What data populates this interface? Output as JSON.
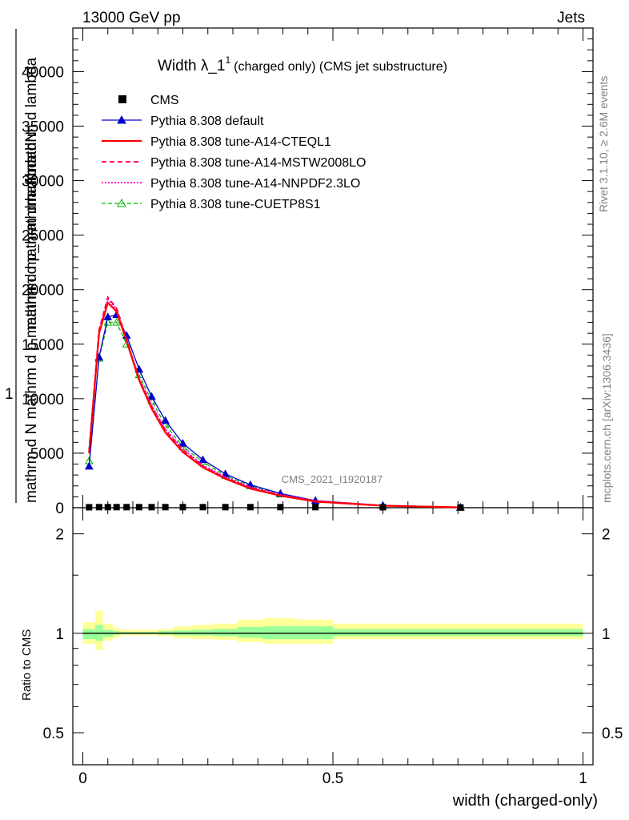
{
  "header": {
    "left": "13000 GeV pp",
    "right": "Jets"
  },
  "side_labels": {
    "rivet": "Rivet 3.1.10, ≥ 2.6M events",
    "mcplots": "mcplots.cern.ch [arXiv:1306.3436]"
  },
  "watermark": "CMS_2021_I1920187",
  "colors": {
    "cms": "#000000",
    "default": "#0000cc",
    "cteql1": "#ff0000",
    "mstw": "#ff0066",
    "nnpdf": "#ff00cc",
    "cuetp8s1": "#00b800",
    "band_outer": "#ffff99",
    "band_inner": "#99ff99"
  },
  "chart_data": [
    {
      "type": "line",
      "title_main": "Width λ_1",
      "title_sup": "1",
      "title_rest": "(charged only) (CMS jet substructure)",
      "ylabel_top": "mathrm dN",
      "ylabel_top2": "mathrm d p_mathrm d mathrm d lambda",
      "ylabel_one": "1",
      "ylabel_bottom": "mathrm d N  mathrm d p mathrm d mathrm d lambda",
      "ylim": [
        0,
        44000
      ],
      "xlim": [
        -0.02,
        1.02
      ],
      "ytick_labels": [
        "0",
        "5000",
        "10000",
        "15000",
        "20000",
        "25000",
        "30000",
        "35000",
        "40000"
      ],
      "ytick_values": [
        0,
        5000,
        10000,
        15000,
        20000,
        25000,
        30000,
        35000,
        40000
      ],
      "x": [
        0.0125,
        0.0325,
        0.05,
        0.0675,
        0.0875,
        0.1125,
        0.1375,
        0.165,
        0.2,
        0.24,
        0.285,
        0.335,
        0.395,
        0.465,
        0.6,
        0.755
      ],
      "series": [
        {
          "name": "CMS",
          "key": "cms",
          "style": "marker",
          "values": [
            40,
            50,
            50,
            50,
            50,
            50,
            50,
            50,
            50,
            50,
            50,
            50,
            50,
            50,
            40,
            20
          ]
        },
        {
          "name": "Pythia 8.308 default",
          "key": "default",
          "style": "solid-triangle",
          "values": [
            3800,
            13800,
            17500,
            17700,
            15800,
            12700,
            10200,
            8000,
            5900,
            4400,
            3100,
            2100,
            1300,
            650,
            200,
            30
          ]
        },
        {
          "name": "Pythia 8.308 tune-A14-CTEQL1",
          "key": "cteql1",
          "style": "solid",
          "values": [
            5000,
            16000,
            18800,
            18000,
            15300,
            11700,
            9100,
            6900,
            5100,
            3700,
            2650,
            1750,
            1100,
            560,
            180,
            30
          ]
        },
        {
          "name": "Pythia 8.308 tune-A14-MSTW2008LO",
          "key": "mstw",
          "style": "dashed",
          "values": [
            5200,
            16300,
            19300,
            18300,
            15400,
            11800,
            9300,
            7100,
            5300,
            3800,
            2750,
            1850,
            1150,
            600,
            190,
            30
          ]
        },
        {
          "name": "Pythia 8.308 tune-A14-NNPDF2.3LO",
          "key": "nnpdf",
          "style": "dotted",
          "values": [
            5100,
            16200,
            19100,
            18200,
            15400,
            11900,
            9400,
            7200,
            5400,
            3900,
            2800,
            1900,
            1200,
            620,
            200,
            30
          ]
        },
        {
          "name": "Pythia 8.308 tune-CUETP8S1",
          "key": "cuetp8s1",
          "style": "dashed-triangle",
          "values": [
            4300,
            13700,
            17000,
            17000,
            15000,
            12200,
            9800,
            7600,
            5600,
            4200,
            2950,
            2000,
            1250,
            630,
            200,
            30
          ]
        }
      ]
    },
    {
      "type": "area",
      "ylabel": "Ratio to CMS",
      "xlabel": "width (charged-only)",
      "ylim": [
        0.4,
        2.4
      ],
      "log_scale": true,
      "ytick_labels": [
        "0.5",
        "1",
        "2"
      ],
      "ytick_values": [
        0.5,
        1,
        2
      ],
      "xtick_labels": [
        "0",
        "0.5",
        "1"
      ],
      "xtick_values": [
        0,
        0.5,
        1
      ],
      "bins": [
        0.0,
        0.025,
        0.04,
        0.06,
        0.075,
        0.1,
        0.125,
        0.15,
        0.18,
        0.22,
        0.26,
        0.31,
        0.36,
        0.43,
        0.5,
        0.7,
        1.0
      ],
      "band_outer": [
        [
          0.93,
          1.08
        ],
        [
          0.89,
          1.17
        ],
        [
          0.95,
          1.07
        ],
        [
          0.97,
          1.04
        ],
        [
          0.985,
          1.025
        ],
        [
          0.985,
          1.025
        ],
        [
          0.985,
          1.025
        ],
        [
          0.98,
          1.03
        ],
        [
          0.965,
          1.05
        ],
        [
          0.96,
          1.06
        ],
        [
          0.955,
          1.07
        ],
        [
          0.94,
          1.1
        ],
        [
          0.93,
          1.11
        ],
        [
          0.93,
          1.1
        ],
        [
          0.96,
          1.07
        ],
        [
          0.96,
          1.07
        ]
      ],
      "band_inner": [
        [
          0.96,
          1.03
        ],
        [
          0.95,
          1.06
        ],
        [
          0.975,
          1.025
        ],
        [
          0.99,
          1.015
        ],
        [
          0.995,
          1.01
        ],
        [
          0.995,
          1.01
        ],
        [
          0.995,
          1.01
        ],
        [
          0.99,
          1.015
        ],
        [
          0.985,
          1.02
        ],
        [
          0.985,
          1.025
        ],
        [
          0.98,
          1.03
        ],
        [
          0.97,
          1.045
        ],
        [
          0.96,
          1.05
        ],
        [
          0.96,
          1.05
        ],
        [
          0.98,
          1.03
        ],
        [
          0.98,
          1.03
        ]
      ]
    }
  ]
}
